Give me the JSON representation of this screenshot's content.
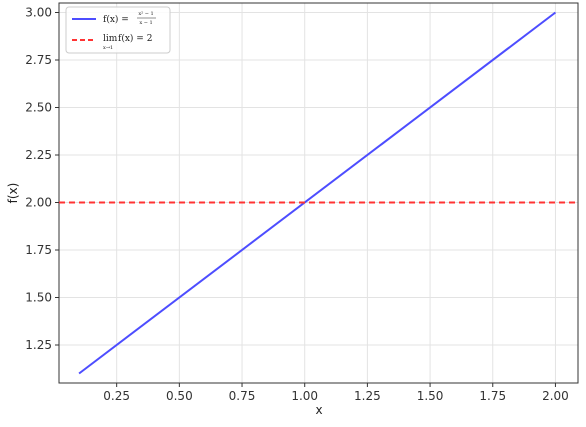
{
  "chart_data": {
    "type": "line",
    "xlabel": "x",
    "ylabel": "f(x)",
    "xlim": [
      0.02,
      2.09
    ],
    "ylim": [
      1.05,
      3.05
    ],
    "xticks": [
      0.25,
      0.5,
      0.75,
      1.0,
      1.25,
      1.5,
      1.75,
      2.0
    ],
    "xtick_labels": [
      "0.25",
      "0.50",
      "0.75",
      "1.00",
      "1.25",
      "1.50",
      "1.75",
      "2.00"
    ],
    "yticks": [
      1.25,
      1.5,
      1.75,
      2.0,
      2.25,
      2.5,
      2.75,
      3.0
    ],
    "ytick_labels": [
      "1.25",
      "1.50",
      "1.75",
      "2.00",
      "2.25",
      "2.50",
      "2.75",
      "3.00"
    ],
    "grid": true,
    "legend_position": "top-left",
    "series": [
      {
        "name": "f(x) = (x² − 1)/(x − 1)",
        "style": "solid",
        "color": "#4d4dff",
        "x": [
          0.1,
          2.0
        ],
        "y": [
          1.1,
          3.0
        ]
      },
      {
        "name": "lim x→1 f(x) = 2",
        "style": "dashed",
        "color": "#ff3333",
        "x": [
          0.02,
          2.09
        ],
        "y": [
          2.0,
          2.0
        ]
      }
    ]
  },
  "legend": {
    "f_label": "f(x) =",
    "f_numerator": "x² − 1",
    "f_denominator": "x − 1",
    "lim_label": "lim",
    "lim_sub": "x→1",
    "lim_rest": "f(x) = 2"
  }
}
